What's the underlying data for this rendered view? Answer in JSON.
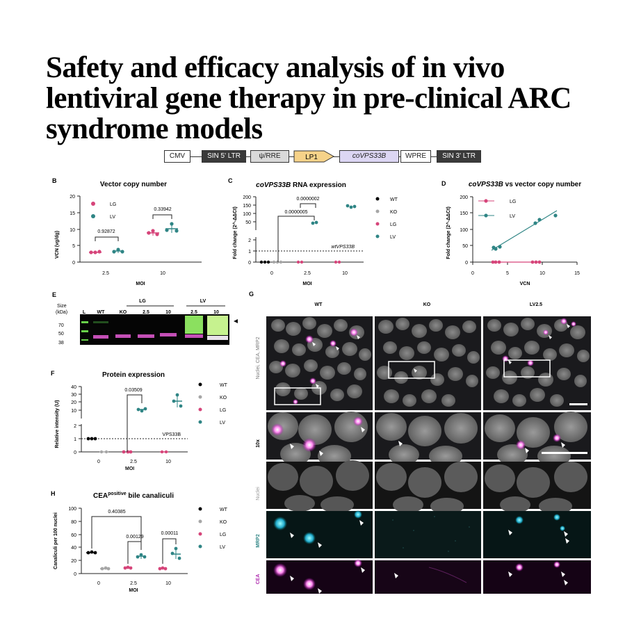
{
  "title": {
    "line1": "Safety and efficacy analysis of in vivo",
    "line2": "lentiviral gene therapy in pre-clinical ARC",
    "line3": "syndrome models"
  },
  "construct": [
    "CMV",
    "SIN 5' LTR",
    "ψ/RRE",
    "LP1",
    "coVPS33B",
    "WPRE",
    "SIN 3' LTR"
  ],
  "colors": {
    "WT": "#000000",
    "KO": "#a6a6a6",
    "LG": "#d6457a",
    "LV": "#2f8585"
  },
  "panelB": {
    "letter": "B",
    "title": "Vector copy number",
    "ylabel": "VCN (vg/dg)",
    "xlabel": "MOI",
    "yticks": [
      "0",
      "5",
      "10",
      "15",
      "20"
    ],
    "xticks": [
      "2.5",
      "10"
    ],
    "legend": [
      "LG",
      "LV"
    ],
    "pvalues": [
      "0.92872",
      "0.33942"
    ]
  },
  "panelC": {
    "letter": "C",
    "title_italic": "coVPS33B",
    "title_rest": " RNA expression",
    "ylabel": "Fold change (2^-ΔΔCt)",
    "xlabel": "MOI",
    "yticks_top": [
      "200",
      "150",
      "100",
      "50"
    ],
    "yticks_bottom": [
      "2",
      "1",
      "0"
    ],
    "xticks": [
      "0",
      "2.5",
      "10"
    ],
    "legend": [
      "WT",
      "KO",
      "LG",
      "LV"
    ],
    "pvalues": [
      "0.0000002",
      "0.0000005"
    ],
    "refline": "wtVPS33B"
  },
  "panelD": {
    "letter": "D",
    "title_italic": "coVPS33B",
    "title_rest": " vs vector copy number",
    "ylabel": "Fold change (2^-ΔΔCt)",
    "xlabel": "VCN",
    "yticks": [
      "0",
      "50",
      "100",
      "150",
      "200"
    ],
    "xticks": [
      "0",
      "5",
      "10",
      "15"
    ],
    "legend": [
      "LG",
      "LV"
    ]
  },
  "panelE": {
    "letter": "E",
    "size_label": "Size",
    "kda_label": "(kDa)",
    "lanes": [
      "L",
      "WT",
      "KO",
      "2.5",
      "10",
      "2.5",
      "10"
    ],
    "groups": [
      "LG",
      "LV"
    ],
    "markers": [
      "70",
      "50",
      "38"
    ]
  },
  "panelF": {
    "letter": "F",
    "title": "Protein expression",
    "ylabel": "Relative intensity (U)",
    "xlabel": "MOI",
    "yticks_top": [
      "40",
      "30",
      "20",
      "10"
    ],
    "yticks_bottom": [
      "2",
      "1",
      "0"
    ],
    "xticks": [
      "0",
      "2.5",
      "10"
    ],
    "legend": [
      "WT",
      "KO",
      "LG",
      "LV"
    ],
    "pvalues": [
      "0.03509"
    ],
    "refline": "VPS33B"
  },
  "panelH": {
    "letter": "H",
    "title_main": "CEA",
    "title_sup": "positive",
    "title_rest": " bile canaliculi",
    "ylabel": "Canaliculi per 100 nuclei",
    "xlabel": "MOI",
    "yticks": [
      "0",
      "20",
      "40",
      "60",
      "80",
      "100"
    ],
    "xticks": [
      "0",
      "2.5",
      "10"
    ],
    "legend": [
      "WT",
      "KO",
      "LG",
      "LV"
    ],
    "pvalues": [
      "0.40385",
      "0.00129",
      "0.00011"
    ]
  },
  "panelG": {
    "letter": "G",
    "columns": [
      "WT",
      "KO",
      "LV2.5"
    ],
    "rows": [
      "Nuclei, CEA, MRP2",
      "10x",
      "Nuclei",
      "MRP2",
      "CEA"
    ]
  }
}
